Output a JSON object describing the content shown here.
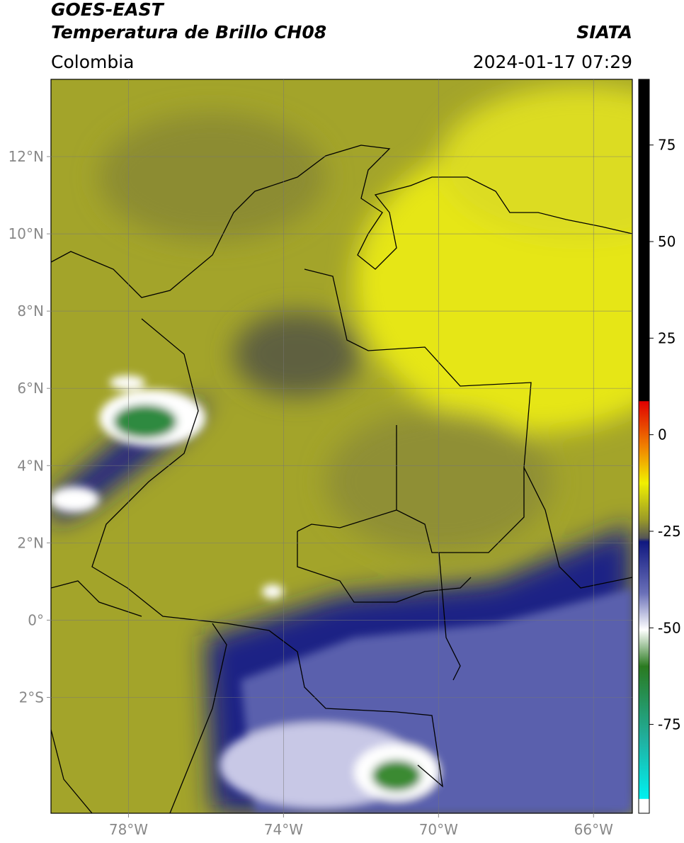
{
  "header": {
    "title": "GOES-EAST",
    "subtitle": "Temperatura de Brillo CH08",
    "region": "Colombia",
    "source": "SIATA",
    "datetime": "2024-01-17 07:29"
  },
  "map": {
    "xlim": [
      -80,
      -65
    ],
    "ylim": [
      -5,
      14
    ],
    "xticks": [
      {
        "value": -78,
        "label": "78°W"
      },
      {
        "value": -74,
        "label": "74°W"
      },
      {
        "value": -70,
        "label": "70°W"
      },
      {
        "value": -66,
        "label": "66°W"
      }
    ],
    "yticks": [
      {
        "value": 12,
        "label": "12°N"
      },
      {
        "value": 10,
        "label": "10°N"
      },
      {
        "value": 8,
        "label": "8°N"
      },
      {
        "value": 6,
        "label": "6°N"
      },
      {
        "value": 4,
        "label": "4°N"
      },
      {
        "value": 2,
        "label": "2°N"
      },
      {
        "value": 0,
        "label": "0°"
      },
      {
        "value": -2,
        "label": "2°S"
      }
    ],
    "grid": true
  },
  "colorbar": {
    "lim": [
      -98,
      92
    ],
    "ticks": [
      75,
      50,
      25,
      0,
      -25,
      -50,
      -75
    ]
  }
}
